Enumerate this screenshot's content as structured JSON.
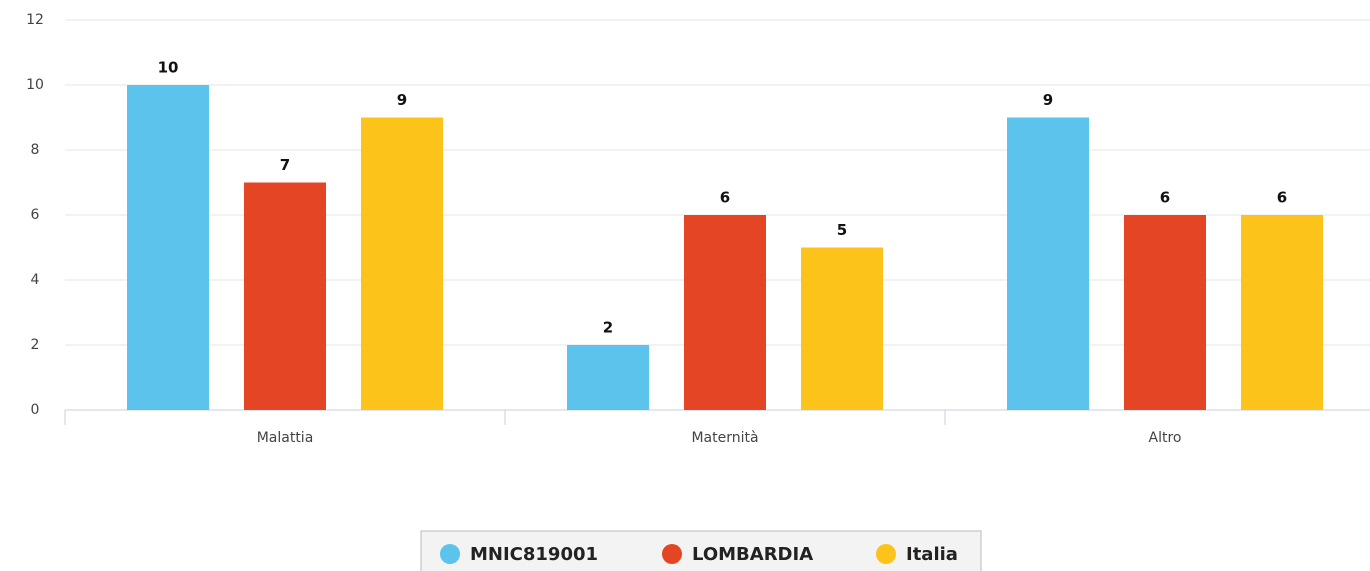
{
  "chart_data": {
    "type": "bar",
    "categories": [
      "Malattia",
      "Maternità",
      "Altro"
    ],
    "series": [
      {
        "name": "MNIC819001",
        "color": "#5bc3ec",
        "values": [
          10,
          2,
          9
        ]
      },
      {
        "name": "LOMBARDIA",
        "color": "#e34525",
        "values": [
          7,
          6,
          6
        ]
      },
      {
        "name": "Italia",
        "color": "#fcc31b",
        "values": [
          9,
          5,
          6
        ]
      }
    ],
    "ylim": [
      0,
      12
    ],
    "yticks": [
      0,
      2,
      4,
      6,
      8,
      10,
      12
    ],
    "grid": true,
    "legend": "bottom"
  }
}
